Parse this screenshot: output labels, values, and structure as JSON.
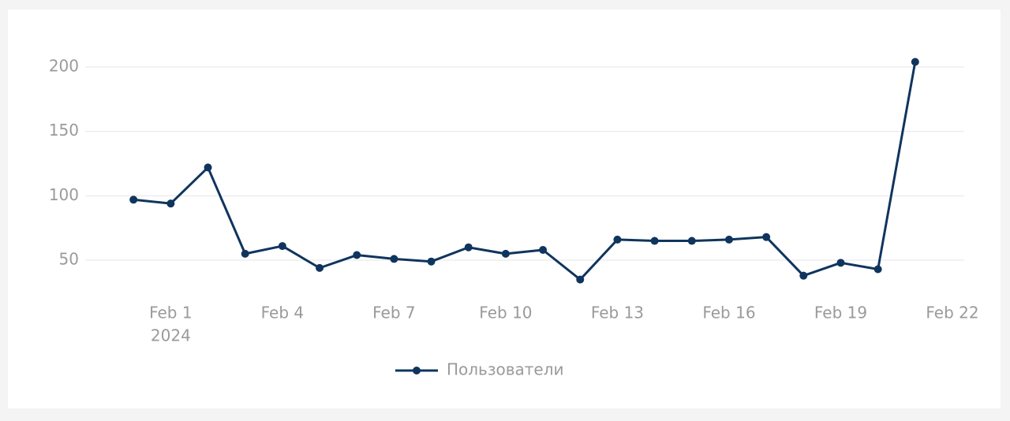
{
  "chart_data": {
    "type": "line",
    "x": [
      "2024-01-31",
      "2024-02-01",
      "2024-02-02",
      "2024-02-03",
      "2024-02-04",
      "2024-02-05",
      "2024-02-06",
      "2024-02-07",
      "2024-02-08",
      "2024-02-09",
      "2024-02-10",
      "2024-02-11",
      "2024-02-12",
      "2024-02-13",
      "2024-02-14",
      "2024-02-15",
      "2024-02-16",
      "2024-02-17",
      "2024-02-18",
      "2024-02-19",
      "2024-02-20",
      "2024-02-21"
    ],
    "series": [
      {
        "name": "Пользователи",
        "color": "#0f355e",
        "values": [
          97,
          94,
          122,
          55,
          61,
          44,
          54,
          51,
          49,
          60,
          55,
          58,
          35,
          66,
          65,
          65,
          66,
          68,
          38,
          48,
          43,
          204
        ]
      }
    ],
    "xlim": [
      "2024-01-30",
      "2024-02-22"
    ],
    "xticks": [
      {
        "value": "2024-02-01",
        "label": "Feb 1",
        "sublabel": "2024"
      },
      {
        "value": "2024-02-04",
        "label": "Feb 4"
      },
      {
        "value": "2024-02-07",
        "label": "Feb 7"
      },
      {
        "value": "2024-02-10",
        "label": "Feb 10"
      },
      {
        "value": "2024-02-13",
        "label": "Feb 13"
      },
      {
        "value": "2024-02-16",
        "label": "Feb 16"
      },
      {
        "value": "2024-02-19",
        "label": "Feb 19"
      },
      {
        "value": "2024-02-22",
        "label": "Feb 22"
      }
    ],
    "ylim": [
      28,
      230
    ],
    "yticks": [
      50,
      100,
      150,
      200
    ],
    "grid": true,
    "legend": "bottom"
  }
}
